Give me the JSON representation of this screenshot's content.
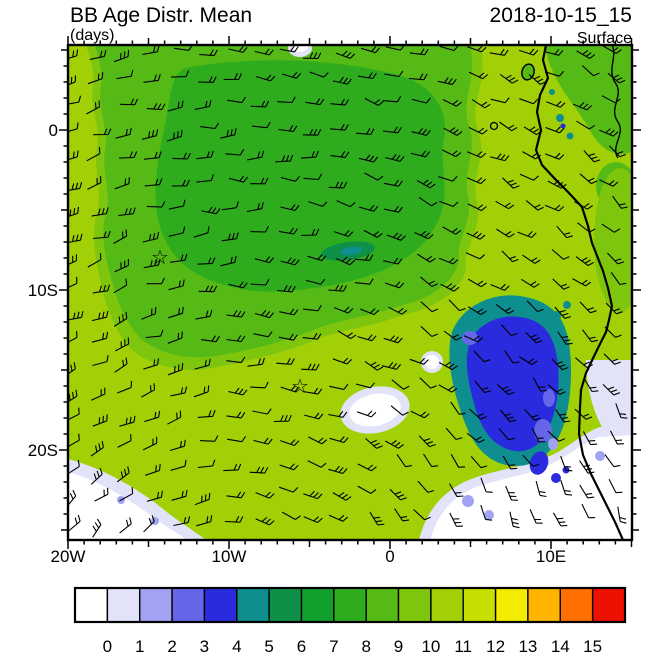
{
  "header": {
    "title": "BB Age Distr. Mean",
    "units": "(days)",
    "datetime": "2018-10-15_15",
    "level": "Surface"
  },
  "axes": {
    "y_labels": [
      "0",
      "10S",
      "20S"
    ],
    "x_labels": [
      "20W",
      "10W",
      "0",
      "10E"
    ]
  },
  "map": {
    "star_glyph": "☆"
  },
  "colorbar": {
    "labels": [
      "0",
      "1",
      "2",
      "3",
      "4",
      "5",
      "6",
      "7",
      "8",
      "9",
      "10",
      "11",
      "12",
      "13",
      "14",
      "15"
    ],
    "colors": [
      "#FFFFFF",
      "#E2E2F8",
      "#A2A2F2",
      "#6666EA",
      "#2A2ADE",
      "#0E8E8E",
      "#0F9048",
      "#12A02C",
      "#2EAC1E",
      "#55BA16",
      "#7EC60E",
      "#A2D007",
      "#C6DE00",
      "#F4EC00",
      "#FFB400",
      "#FF7000",
      "#EE1000"
    ]
  },
  "chart_data": {
    "type": "heatmap",
    "title": "BB Age Distr. Mean",
    "units": "days",
    "valid_time": "2018-10-15_15",
    "level": "Surface",
    "projection": "lat-lon",
    "lon_range_deg": [
      -20,
      15
    ],
    "lat_range_deg": [
      -25.6,
      5.3
    ],
    "lon_tick_labels": [
      "20W",
      "10W",
      "0",
      "10E"
    ],
    "lat_tick_labels": [
      "0",
      "10S",
      "20S"
    ],
    "colorbar_ticks": [
      0,
      1,
      2,
      3,
      4,
      5,
      6,
      7,
      8,
      9,
      10,
      11,
      12,
      13,
      14,
      15
    ],
    "overlay": "surface wind barbs; anticyclonic (counterclockwise) flow around the South Atlantic high, southerly winds running north along the Benguela/Angola coast",
    "markers": [
      {
        "symbol": "open-star",
        "lon_deg": -14.4,
        "lat_deg": -8.0
      },
      {
        "symbol": "open-star",
        "lon_deg": -5.7,
        "lat_deg": -15.9
      }
    ],
    "features": [
      {
        "region": "most of the oceanic domain (background)",
        "mean_age_days": 10.5
      },
      {
        "region": "large blob over NW/central domain, ~5N-12S and 18W-3W",
        "mean_age_days": 8.5
      },
      {
        "region": "inner core of that blob",
        "mean_age_days": 7.5
      },
      {
        "region": "small dark streak near 3W, 8S",
        "mean_age_days": 5.5
      },
      {
        "region": "fresh-smoke plume off Angola/Namibia coast, ~7-12E, 13-20S (blue)",
        "mean_age_days": 3.5
      },
      {
        "region": "teal fringe around the coastal plume",
        "mean_age_days": 4.5
      },
      {
        "region": "white areas: SW corner, SE sector near coast, small mid-ocean spots",
        "mean_age_days": 0.5
      },
      {
        "region": "land in NE corner (Gabon/Congo/Cameroon)",
        "mean_age_days": 8.5
      }
    ],
    "coastline": "African west coast from Cameroon south to Namibia, with Bioko and Sao Tome islands"
  }
}
